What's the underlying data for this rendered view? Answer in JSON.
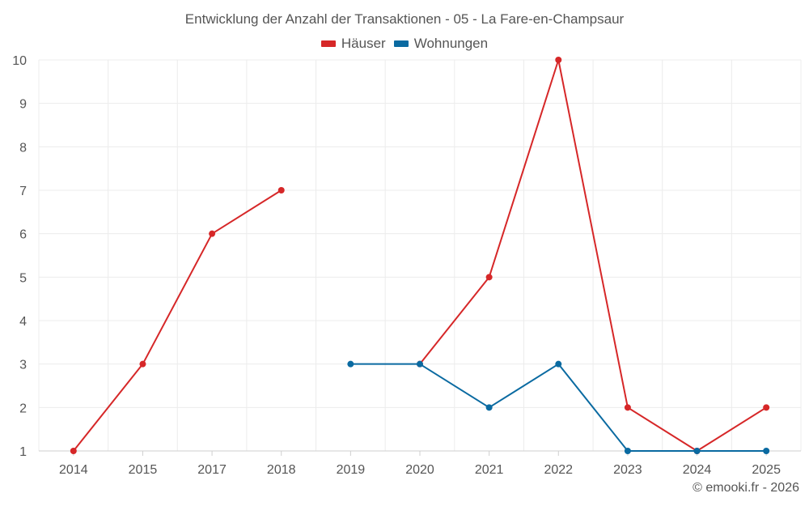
{
  "chart_data": {
    "type": "line",
    "title": "Entwicklung der Anzahl der Transaktionen - 05 - La Fare-en-Champsaur",
    "categories": [
      "2014",
      "2015",
      "2017",
      "2018",
      "2019",
      "2020",
      "2021",
      "2022",
      "2023",
      "2024",
      "2025"
    ],
    "series": [
      {
        "name": "Häuser",
        "color": "#d62728",
        "values": [
          1,
          3,
          6,
          7,
          null,
          3,
          5,
          10,
          2,
          1,
          2
        ]
      },
      {
        "name": "Wohnungen",
        "color": "#0a6aa1",
        "values": [
          null,
          null,
          null,
          null,
          3,
          3,
          2,
          3,
          1,
          1,
          1
        ]
      }
    ],
    "yticks": [
      1,
      2,
      3,
      4,
      5,
      6,
      7,
      8,
      9,
      10
    ],
    "ylim": [
      1,
      10
    ],
    "grid": true,
    "legend_position": "top-center"
  },
  "credit": "© emooki.fr - 2026"
}
